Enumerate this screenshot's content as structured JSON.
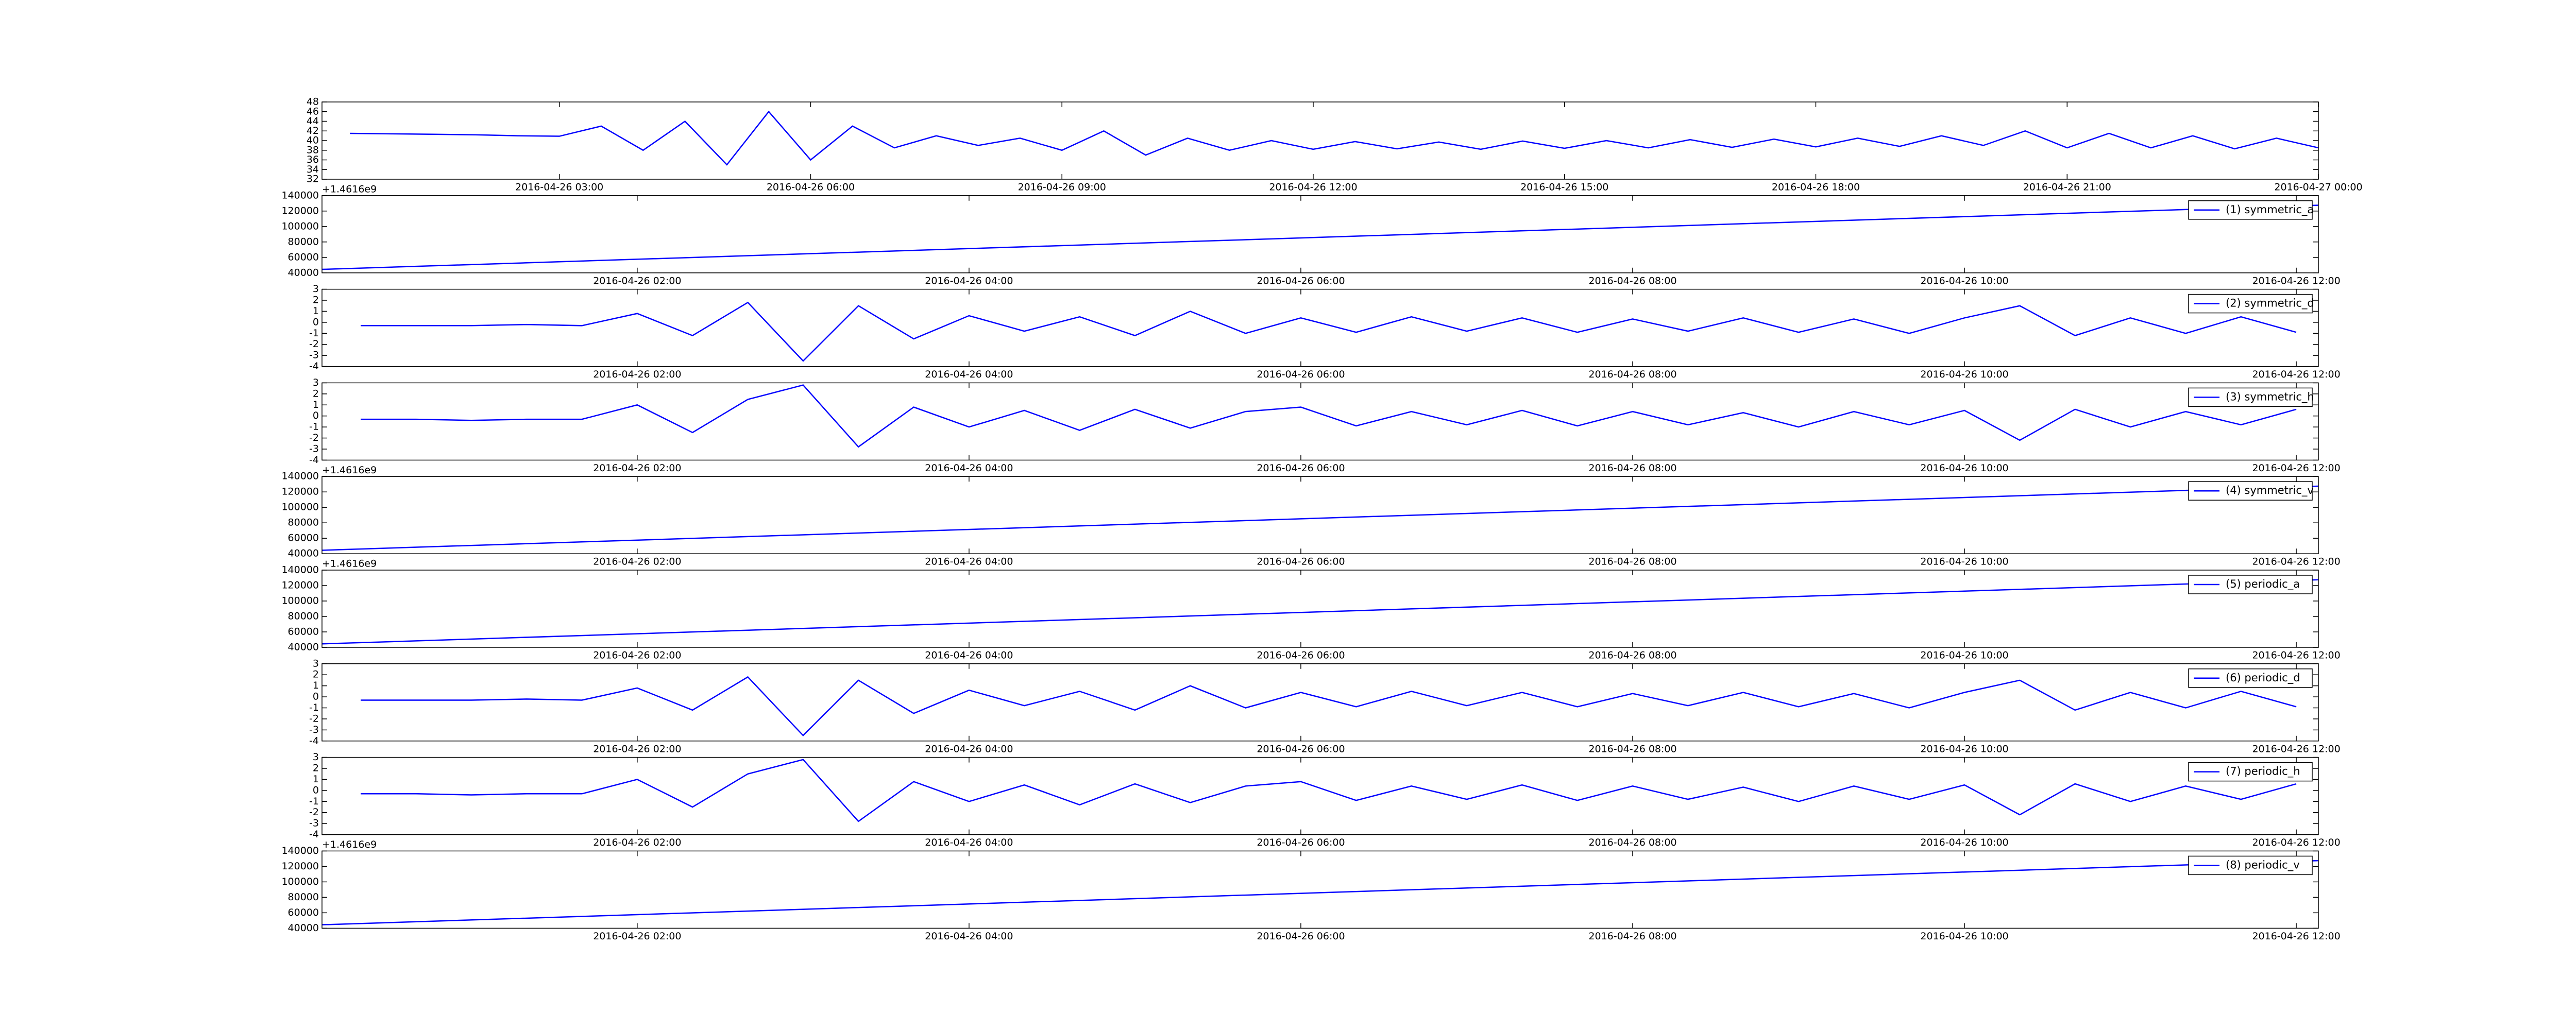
{
  "chart_data": [
    {
      "type": "line",
      "offset_label": "+1.4616e9",
      "x": [
        "2016-04-26 00:30",
        "2016-04-26 01:00",
        "2016-04-26 01:30",
        "2016-04-26 02:00",
        "2016-04-26 02:30",
        "2016-04-26 03:00",
        "2016-04-26 03:30",
        "2016-04-26 04:00",
        "2016-04-26 04:30",
        "2016-04-26 05:00",
        "2016-04-26 05:30",
        "2016-04-26 06:00",
        "2016-04-26 06:30",
        "2016-04-26 07:00",
        "2016-04-26 07:30",
        "2016-04-26 08:00",
        "2016-04-26 08:30",
        "2016-04-26 09:00",
        "2016-04-26 09:30",
        "2016-04-26 10:00",
        "2016-04-26 10:30",
        "2016-04-26 11:00",
        "2016-04-26 11:30",
        "2016-04-26 12:00",
        "2016-04-26 12:30",
        "2016-04-26 13:00",
        "2016-04-26 13:30",
        "2016-04-26 14:00",
        "2016-04-26 14:30",
        "2016-04-26 15:00",
        "2016-04-26 15:30",
        "2016-04-26 16:00",
        "2016-04-26 16:30",
        "2016-04-26 17:00",
        "2016-04-26 17:30",
        "2016-04-26 18:00",
        "2016-04-26 18:30",
        "2016-04-26 19:00",
        "2016-04-26 19:30",
        "2016-04-26 20:00",
        "2016-04-26 20:30",
        "2016-04-26 21:00",
        "2016-04-26 21:30",
        "2016-04-26 22:00",
        "2016-04-26 22:30",
        "2016-04-26 23:00",
        "2016-04-26 23:30",
        "2016-04-27 00:00"
      ],
      "series": [
        {
          "color": "#0000ff",
          "values": [
            41.5,
            41.4,
            41.3,
            41.2,
            41.0,
            40.9,
            43,
            38,
            44,
            35,
            46,
            36,
            43,
            38.5,
            41,
            39,
            40.5,
            38,
            42,
            37,
            40.5,
            38,
            40,
            38.2,
            39.8,
            38.3,
            39.7,
            38.2,
            39.9,
            38.4,
            40,
            38.5,
            40.2,
            38.6,
            40.3,
            38.7,
            40.5,
            38.8,
            41,
            39,
            42,
            38.5,
            41.5,
            38.5,
            41,
            38.3,
            40.5,
            38.5
          ]
        }
      ],
      "xlim": [
        "2016-04-26 00:10",
        "2016-04-27 00:00"
      ],
      "xticks": [
        "2016-04-26 03:00",
        "2016-04-26 06:00",
        "2016-04-26 09:00",
        "2016-04-26 12:00",
        "2016-04-26 15:00",
        "2016-04-26 18:00",
        "2016-04-26 21:00",
        "2016-04-27 00:00"
      ],
      "ylim": [
        32,
        48
      ],
      "yticks": [
        32,
        34,
        36,
        38,
        40,
        42,
        44,
        46,
        48
      ]
    },
    {
      "type": "line",
      "legend": "upper right",
      "x": [
        "2016-04-26 00:06",
        "2016-04-26 12:08"
      ],
      "series": [
        {
          "name": "(1) symmetric_a",
          "color": "#0000ff",
          "values": [
            44500,
            127500
          ]
        }
      ],
      "xlim": [
        "2016-04-26 00:06",
        "2016-04-26 12:08"
      ],
      "xticks": [
        "2016-04-26 02:00",
        "2016-04-26 04:00",
        "2016-04-26 06:00",
        "2016-04-26 08:00",
        "2016-04-26 10:00",
        "2016-04-26 12:00"
      ],
      "ylim": [
        40000,
        140000
      ],
      "yticks": [
        40000,
        60000,
        80000,
        100000,
        120000,
        140000
      ]
    },
    {
      "type": "line",
      "legend": "upper right",
      "x": [
        "2016-04-26 00:20",
        "2016-04-26 00:40",
        "2016-04-26 01:00",
        "2016-04-26 01:20",
        "2016-04-26 01:40",
        "2016-04-26 02:00",
        "2016-04-26 02:20",
        "2016-04-26 02:40",
        "2016-04-26 03:00",
        "2016-04-26 03:20",
        "2016-04-26 03:40",
        "2016-04-26 04:00",
        "2016-04-26 04:20",
        "2016-04-26 04:40",
        "2016-04-26 05:00",
        "2016-04-26 05:20",
        "2016-04-26 05:40",
        "2016-04-26 06:00",
        "2016-04-26 06:20",
        "2016-04-26 06:40",
        "2016-04-26 07:00",
        "2016-04-26 07:20",
        "2016-04-26 07:40",
        "2016-04-26 08:00",
        "2016-04-26 08:20",
        "2016-04-26 08:40",
        "2016-04-26 09:00",
        "2016-04-26 09:20",
        "2016-04-26 09:40",
        "2016-04-26 10:00",
        "2016-04-26 10:20",
        "2016-04-26 10:40",
        "2016-04-26 11:00",
        "2016-04-26 11:20",
        "2016-04-26 11:40",
        "2016-04-26 12:00"
      ],
      "series": [
        {
          "name": "(2) symmetric_d",
          "color": "#0000ff",
          "values": [
            -0.3,
            -0.3,
            -0.3,
            -0.2,
            -0.3,
            0.8,
            -1.2,
            1.8,
            -3.5,
            1.5,
            -1.5,
            0.6,
            -0.8,
            0.5,
            -1.2,
            1.0,
            -1.0,
            0.4,
            -0.9,
            0.5,
            -0.8,
            0.4,
            -0.9,
            0.3,
            -0.8,
            0.4,
            -0.9,
            0.3,
            -1.0,
            0.4,
            1.5,
            -1.2,
            0.4,
            -1.0,
            0.5,
            -0.9
          ]
        }
      ],
      "xlim": [
        "2016-04-26 00:06",
        "2016-04-26 12:08"
      ],
      "xticks": [
        "2016-04-26 02:00",
        "2016-04-26 04:00",
        "2016-04-26 06:00",
        "2016-04-26 08:00",
        "2016-04-26 10:00",
        "2016-04-26 12:00"
      ],
      "ylim": [
        -4,
        3
      ],
      "yticks": [
        -4,
        -3,
        -2,
        -1,
        0,
        1,
        2,
        3
      ]
    },
    {
      "type": "line",
      "legend": "upper right",
      "offset_label": "+1.4616e9",
      "x": [
        "2016-04-26 00:20",
        "2016-04-26 00:40",
        "2016-04-26 01:00",
        "2016-04-26 01:20",
        "2016-04-26 01:40",
        "2016-04-26 02:00",
        "2016-04-26 02:20",
        "2016-04-26 02:40",
        "2016-04-26 03:00",
        "2016-04-26 03:20",
        "2016-04-26 03:40",
        "2016-04-26 04:00",
        "2016-04-26 04:20",
        "2016-04-26 04:40",
        "2016-04-26 05:00",
        "2016-04-26 05:20",
        "2016-04-26 05:40",
        "2016-04-26 06:00",
        "2016-04-26 06:20",
        "2016-04-26 06:40",
        "2016-04-26 07:00",
        "2016-04-26 07:20",
        "2016-04-26 07:40",
        "2016-04-26 08:00",
        "2016-04-26 08:20",
        "2016-04-26 08:40",
        "2016-04-26 09:00",
        "2016-04-26 09:20",
        "2016-04-26 09:40",
        "2016-04-26 10:00",
        "2016-04-26 10:20",
        "2016-04-26 10:40",
        "2016-04-26 11:00",
        "2016-04-26 11:20",
        "2016-04-26 11:40",
        "2016-04-26 12:00"
      ],
      "series": [
        {
          "name": "(3) symmetric_h",
          "color": "#0000ff",
          "values": [
            -0.3,
            -0.3,
            -0.4,
            -0.3,
            -0.3,
            1.0,
            -1.5,
            1.5,
            2.8,
            -2.8,
            0.8,
            -1.0,
            0.5,
            -1.3,
            0.6,
            -1.1,
            0.4,
            0.8,
            -0.9,
            0.4,
            -0.8,
            0.5,
            -0.9,
            0.4,
            -0.8,
            0.3,
            -1.0,
            0.4,
            -0.8,
            0.5,
            -2.2,
            0.6,
            -1.0,
            0.4,
            -0.8,
            0.6
          ]
        }
      ],
      "xlim": [
        "2016-04-26 00:06",
        "2016-04-26 12:08"
      ],
      "xticks": [
        "2016-04-26 02:00",
        "2016-04-26 04:00",
        "2016-04-26 06:00",
        "2016-04-26 08:00",
        "2016-04-26 10:00",
        "2016-04-26 12:00"
      ],
      "ylim": [
        -4,
        3
      ],
      "yticks": [
        -4,
        -3,
        -2,
        -1,
        0,
        1,
        2,
        3
      ]
    },
    {
      "type": "line",
      "legend": "upper right",
      "offset_label": "+1.4616e9",
      "x": [
        "2016-04-26 00:06",
        "2016-04-26 12:08"
      ],
      "series": [
        {
          "name": "(4) symmetric_v",
          "color": "#0000ff",
          "values": [
            44500,
            127500
          ]
        }
      ],
      "xlim": [
        "2016-04-26 00:06",
        "2016-04-26 12:08"
      ],
      "xticks": [
        "2016-04-26 02:00",
        "2016-04-26 04:00",
        "2016-04-26 06:00",
        "2016-04-26 08:00",
        "2016-04-26 10:00",
        "2016-04-26 12:00"
      ],
      "ylim": [
        40000,
        140000
      ],
      "yticks": [
        40000,
        60000,
        80000,
        100000,
        120000,
        140000
      ]
    },
    {
      "type": "line",
      "legend": "upper right",
      "x": [
        "2016-04-26 00:06",
        "2016-04-26 12:08"
      ],
      "series": [
        {
          "name": "(5) periodic_a",
          "color": "#0000ff",
          "values": [
            44500,
            127500
          ]
        }
      ],
      "xlim": [
        "2016-04-26 00:06",
        "2016-04-26 12:08"
      ],
      "xticks": [
        "2016-04-26 02:00",
        "2016-04-26 04:00",
        "2016-04-26 06:00",
        "2016-04-26 08:00",
        "2016-04-26 10:00",
        "2016-04-26 12:00"
      ],
      "ylim": [
        40000,
        140000
      ],
      "yticks": [
        40000,
        60000,
        80000,
        100000,
        120000,
        140000
      ]
    },
    {
      "type": "line",
      "legend": "upper right",
      "x": [
        "2016-04-26 00:20",
        "2016-04-26 00:40",
        "2016-04-26 01:00",
        "2016-04-26 01:20",
        "2016-04-26 01:40",
        "2016-04-26 02:00",
        "2016-04-26 02:20",
        "2016-04-26 02:40",
        "2016-04-26 03:00",
        "2016-04-26 03:20",
        "2016-04-26 03:40",
        "2016-04-26 04:00",
        "2016-04-26 04:20",
        "2016-04-26 04:40",
        "2016-04-26 05:00",
        "2016-04-26 05:20",
        "2016-04-26 05:40",
        "2016-04-26 06:00",
        "2016-04-26 06:20",
        "2016-04-26 06:40",
        "2016-04-26 07:00",
        "2016-04-26 07:20",
        "2016-04-26 07:40",
        "2016-04-26 08:00",
        "2016-04-26 08:20",
        "2016-04-26 08:40",
        "2016-04-26 09:00",
        "2016-04-26 09:20",
        "2016-04-26 09:40",
        "2016-04-26 10:00",
        "2016-04-26 10:20",
        "2016-04-26 10:40",
        "2016-04-26 11:00",
        "2016-04-26 11:20",
        "2016-04-26 11:40",
        "2016-04-26 12:00"
      ],
      "series": [
        {
          "name": "(6) periodic_d",
          "color": "#0000ff",
          "values": [
            -0.3,
            -0.3,
            -0.3,
            -0.2,
            -0.3,
            0.8,
            -1.2,
            1.8,
            -3.5,
            1.5,
            -1.5,
            0.6,
            -0.8,
            0.5,
            -1.2,
            1.0,
            -1.0,
            0.4,
            -0.9,
            0.5,
            -0.8,
            0.4,
            -0.9,
            0.3,
            -0.8,
            0.4,
            -0.9,
            0.3,
            -1.0,
            0.4,
            1.5,
            -1.2,
            0.4,
            -1.0,
            0.5,
            -0.9
          ]
        }
      ],
      "xlim": [
        "2016-04-26 00:06",
        "2016-04-26 12:08"
      ],
      "xticks": [
        "2016-04-26 02:00",
        "2016-04-26 04:00",
        "2016-04-26 06:00",
        "2016-04-26 08:00",
        "2016-04-26 10:00",
        "2016-04-26 12:00"
      ],
      "ylim": [
        -4,
        3
      ],
      "yticks": [
        -4,
        -3,
        -2,
        -1,
        0,
        1,
        2,
        3
      ]
    },
    {
      "type": "line",
      "legend": "upper right",
      "offset_label": "+1.4616e9",
      "x": [
        "2016-04-26 00:20",
        "2016-04-26 00:40",
        "2016-04-26 01:00",
        "2016-04-26 01:20",
        "2016-04-26 01:40",
        "2016-04-26 02:00",
        "2016-04-26 02:20",
        "2016-04-26 02:40",
        "2016-04-26 03:00",
        "2016-04-26 03:20",
        "2016-04-26 03:40",
        "2016-04-26 04:00",
        "2016-04-26 04:20",
        "2016-04-26 04:40",
        "2016-04-26 05:00",
        "2016-04-26 05:20",
        "2016-04-26 05:40",
        "2016-04-26 06:00",
        "2016-04-26 06:20",
        "2016-04-26 06:40",
        "2016-04-26 07:00",
        "2016-04-26 07:20",
        "2016-04-26 07:40",
        "2016-04-26 08:00",
        "2016-04-26 08:20",
        "2016-04-26 08:40",
        "2016-04-26 09:00",
        "2016-04-26 09:20",
        "2016-04-26 09:40",
        "2016-04-26 10:00",
        "2016-04-26 10:20",
        "2016-04-26 10:40",
        "2016-04-26 11:00",
        "2016-04-26 11:20",
        "2016-04-26 11:40",
        "2016-04-26 12:00"
      ],
      "series": [
        {
          "name": "(7) periodic_h",
          "color": "#0000ff",
          "values": [
            -0.3,
            -0.3,
            -0.4,
            -0.3,
            -0.3,
            1.0,
            -1.5,
            1.5,
            2.8,
            -2.8,
            0.8,
            -1.0,
            0.5,
            -1.3,
            0.6,
            -1.1,
            0.4,
            0.8,
            -0.9,
            0.4,
            -0.8,
            0.5,
            -0.9,
            0.4,
            -0.8,
            0.3,
            -1.0,
            0.4,
            -0.8,
            0.5,
            -2.2,
            0.6,
            -1.0,
            0.4,
            -0.8,
            0.6
          ]
        }
      ],
      "xlim": [
        "2016-04-26 00:06",
        "2016-04-26 12:08"
      ],
      "xticks": [
        "2016-04-26 02:00",
        "2016-04-26 04:00",
        "2016-04-26 06:00",
        "2016-04-26 08:00",
        "2016-04-26 10:00",
        "2016-04-26 12:00"
      ],
      "ylim": [
        -4,
        3
      ],
      "yticks": [
        -4,
        -3,
        -2,
        -1,
        0,
        1,
        2,
        3
      ]
    },
    {
      "type": "line",
      "legend": "upper right",
      "x": [
        "2016-04-26 00:06",
        "2016-04-26 12:08"
      ],
      "series": [
        {
          "name": "(8) periodic_v",
          "color": "#0000ff",
          "values": [
            44500,
            127500
          ]
        }
      ],
      "xlim": [
        "2016-04-26 00:06",
        "2016-04-26 12:08"
      ],
      "xticks": [
        "2016-04-26 02:00",
        "2016-04-26 04:00",
        "2016-04-26 06:00",
        "2016-04-26 08:00",
        "2016-04-26 10:00",
        "2016-04-26 12:00"
      ],
      "ylim": [
        40000,
        140000
      ],
      "yticks": [
        40000,
        60000,
        80000,
        100000,
        120000,
        140000
      ]
    }
  ]
}
